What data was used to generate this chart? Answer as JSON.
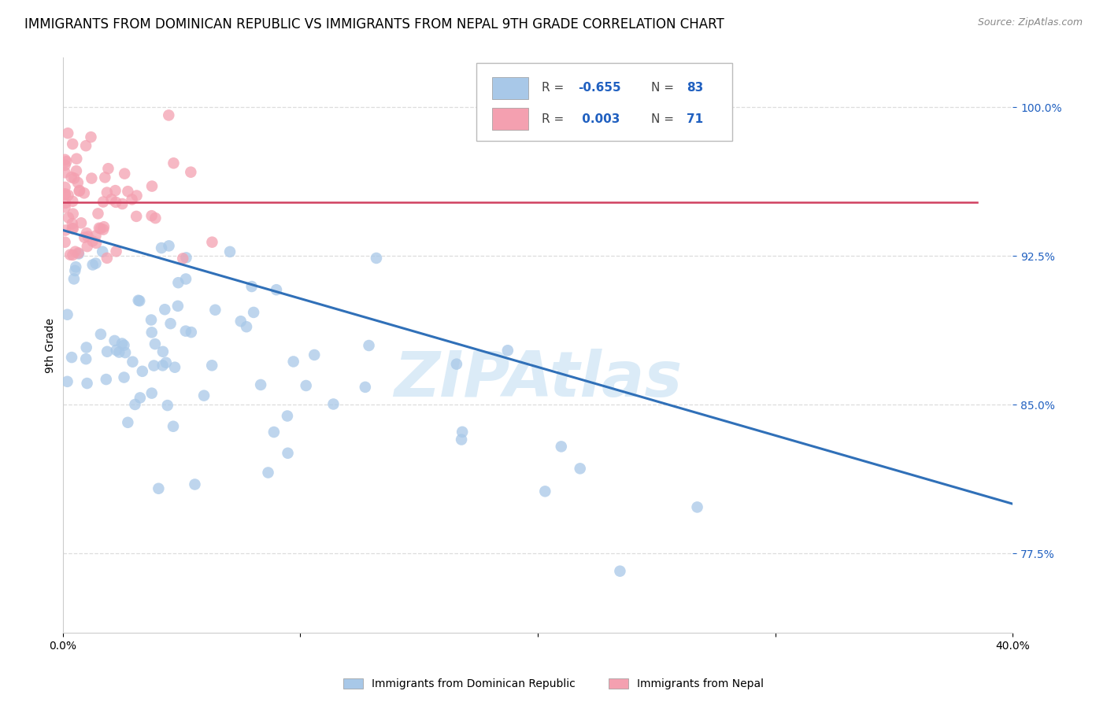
{
  "title": "IMMIGRANTS FROM DOMINICAN REPUBLIC VS IMMIGRANTS FROM NEPAL 9TH GRADE CORRELATION CHART",
  "source": "Source: ZipAtlas.com",
  "ylabel": "9th Grade",
  "xlim": [
    0.0,
    0.4
  ],
  "ylim": [
    0.735,
    1.025
  ],
  "yticks": [
    0.775,
    0.85,
    0.925,
    1.0
  ],
  "ytick_labels": [
    "77.5%",
    "85.0%",
    "92.5%",
    "100.0%"
  ],
  "xticks": [
    0.0,
    0.1,
    0.2,
    0.3,
    0.4
  ],
  "xtick_labels": [
    "0.0%",
    "",
    "",
    "",
    "40.0%"
  ],
  "color_blue": "#a8c8e8",
  "color_pink": "#f4a0b0",
  "color_blue_line": "#3070b8",
  "color_pink_line": "#d04060",
  "color_blue_text": "#2060c0",
  "grid_color": "#dddddd",
  "ytick_color": "#2060c0",
  "watermark": "ZIPAtlas",
  "background_color": "#ffffff",
  "title_fontsize": 12,
  "label_fontsize": 10,
  "tick_fontsize": 10,
  "blue_line_x0": 0.0,
  "blue_line_x1": 0.4,
  "blue_line_y0": 0.938,
  "blue_line_y1": 0.8,
  "pink_line_x0": 0.0,
  "pink_line_x1": 0.385,
  "pink_line_y0": 0.952,
  "pink_line_y1": 0.952
}
